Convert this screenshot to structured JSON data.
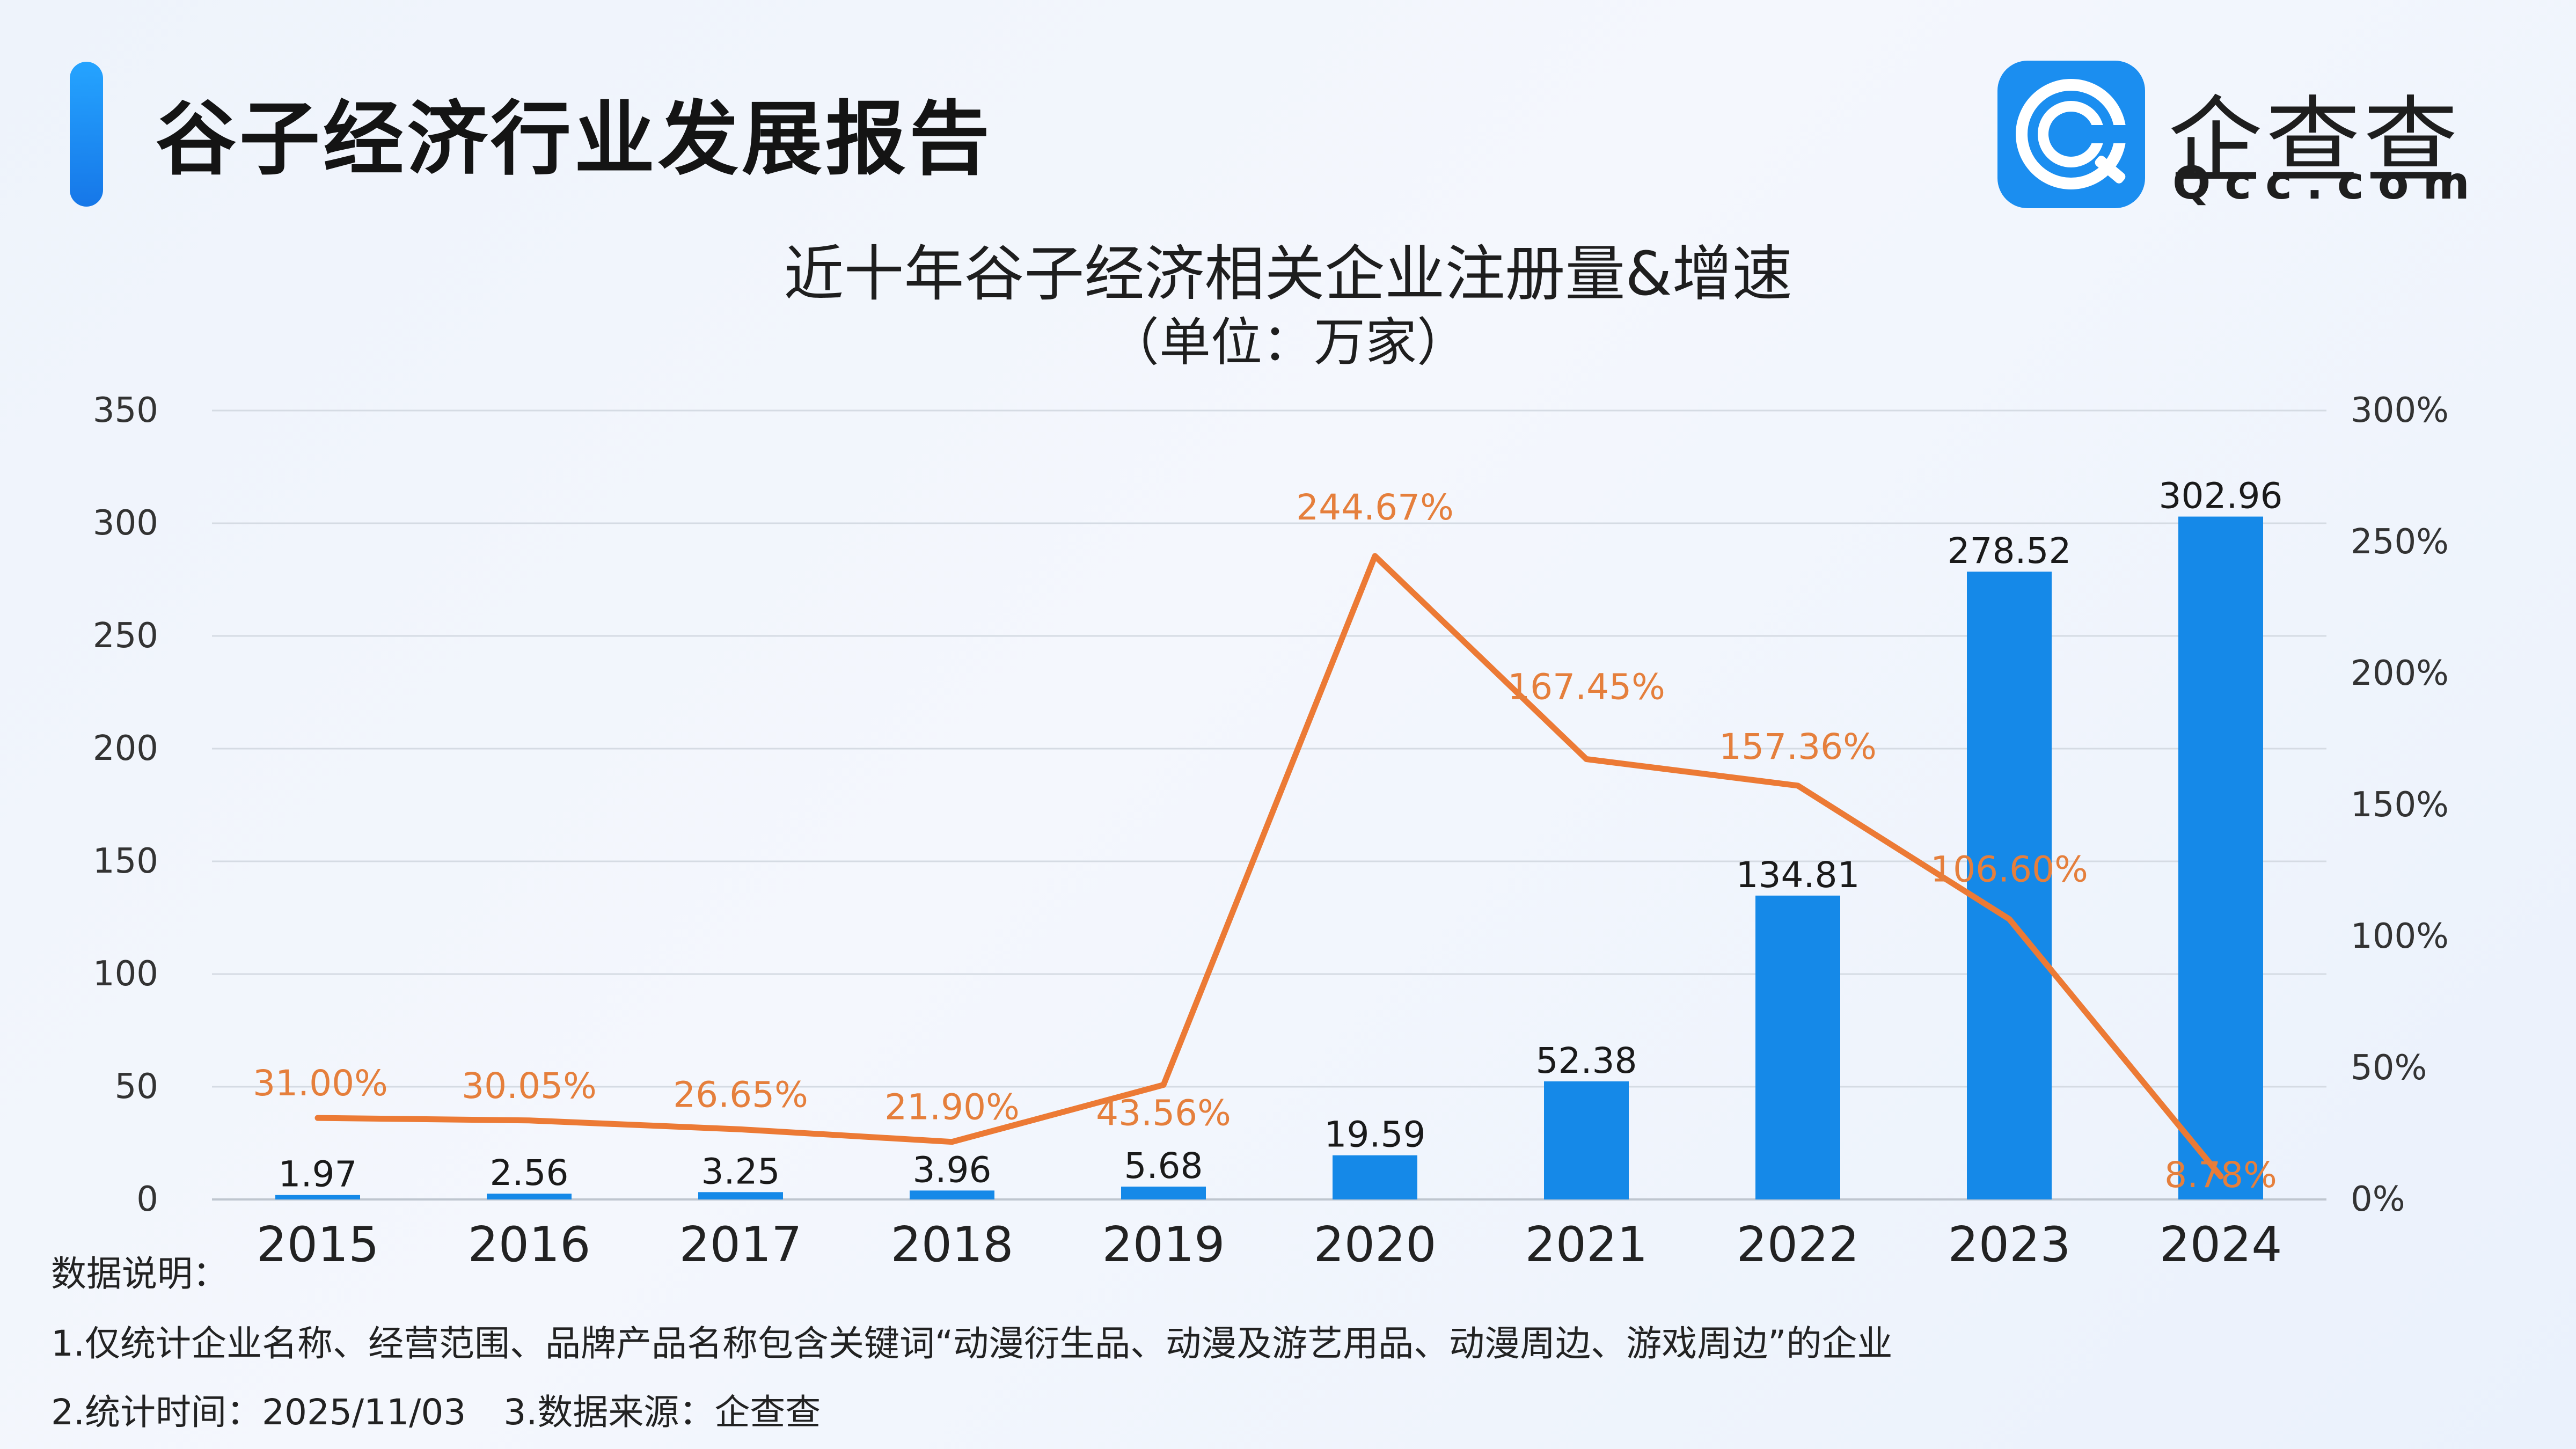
{
  "header": {
    "title": "谷子经济行业发展报告",
    "logo_text": "企查查",
    "logo_url": "Qcc.com",
    "logo_icon": "qcc-logo-icon",
    "accent_color": "#1b8ef0"
  },
  "chart_data": {
    "type": "bar",
    "title": "近十年谷子经济相关企业注册量&增速",
    "subtitle": "（单位：万家）",
    "categories": [
      "2015",
      "2016",
      "2017",
      "2018",
      "2019",
      "2020",
      "2021",
      "2022",
      "2023",
      "2024"
    ],
    "series": [
      {
        "type": "bar",
        "axis": "left",
        "color": "#1589e8",
        "values": [
          1.97,
          2.56,
          3.25,
          3.96,
          5.68,
          19.59,
          52.38,
          134.81,
          278.52,
          302.96
        ],
        "labels": [
          "1.97",
          "2.56",
          "3.25",
          "3.96",
          "5.68",
          "19.59",
          "52.38",
          "134.81",
          "278.52",
          "302.96"
        ]
      },
      {
        "type": "line",
        "axis": "right",
        "color": "#ec7a35",
        "values": [
          31.0,
          30.05,
          26.65,
          21.9,
          43.56,
          244.67,
          167.45,
          157.36,
          106.6,
          8.78
        ],
        "labels": [
          "31.00%",
          "30.05%",
          "26.65%",
          "21.90%",
          "43.56%",
          "244.67%",
          "167.45%",
          "157.36%",
          "106.60%",
          "8.78%"
        ]
      }
    ],
    "y_left": {
      "range": [
        0,
        350
      ],
      "ticks": [
        0,
        50,
        100,
        150,
        200,
        250,
        300,
        350
      ],
      "tick_labels": [
        "0",
        "50",
        "100",
        "150",
        "200",
        "250",
        "300",
        "350"
      ]
    },
    "y_right": {
      "range": [
        0,
        300
      ],
      "ticks": [
        0,
        50,
        100,
        150,
        200,
        250,
        300
      ],
      "tick_labels": [
        "0%",
        "50%",
        "100%",
        "150%",
        "200%",
        "250%",
        "300%"
      ]
    },
    "grid": true,
    "legend": "none"
  },
  "notes": {
    "title": "数据说明：",
    "line1": "1.仅统计企业名称、经营范围、品牌产品名称包含关键词“动漫衍生品、动漫及游艺用品、动漫周边、游戏周边”的企业",
    "line2_a": "2.统计时间：2025/11/03",
    "line2_b": "3.数据来源：企查查"
  }
}
